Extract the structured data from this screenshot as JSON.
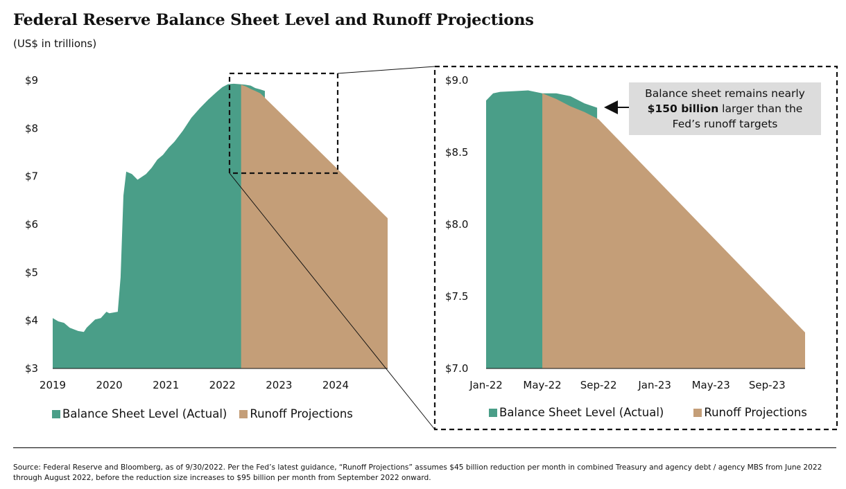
{
  "title": "Federal Reserve Balance Sheet Level and Runoff Projections",
  "subtitle": "(US$ in trillions)",
  "colors": {
    "actual": "#4a9e88",
    "projection": "#c49e78",
    "annotation_bg": "#dcdcdc"
  },
  "legend": {
    "actual": "Balance Sheet Level (Actual)",
    "projection": "Runoff Projections"
  },
  "annotation": {
    "line1": "Balance sheet remains nearly",
    "bold": "$150 billion",
    "line2_rest": " larger than the",
    "line3": "Fed’s runoff targets"
  },
  "source": "Source: Federal Reserve and Bloomberg, as of 9/30/2022. Per the Fed’s latest guidance, “Runoff Projections” assumes $45 billion reduction per month in combined Treasury and agency debt / agency MBS from June 2022 through August 2022, before the reduction size increases to $95 billion per month from September 2022 onward.",
  "chart_data": [
    {
      "type": "area",
      "title": "",
      "xlim": [
        2019.0,
        2024.92
      ],
      "ylim": [
        3,
        9
      ],
      "x_tick_labels": [
        "2019",
        "2020",
        "2021",
        "2022",
        "2023",
        "2024"
      ],
      "x_tick_values": [
        2019,
        2020,
        2021,
        2022,
        2023,
        2024
      ],
      "y_tick_labels": [
        "$3",
        "$4",
        "$5",
        "$6",
        "$7",
        "$8",
        "$9"
      ],
      "y_tick_values": [
        3,
        4,
        5,
        6,
        7,
        8,
        9
      ],
      "series": [
        {
          "name": "Balance Sheet Level (Actual)",
          "x": [
            2019.0,
            2019.1,
            2019.2,
            2019.3,
            2019.45,
            2019.55,
            2019.6,
            2019.75,
            2019.85,
            2019.95,
            2020.0,
            2020.15,
            2020.2,
            2020.25,
            2020.3,
            2020.4,
            2020.5,
            2020.65,
            2020.75,
            2020.85,
            2020.95,
            2021.05,
            2021.15,
            2021.3,
            2021.45,
            2021.6,
            2021.75,
            2021.9,
            2022.0,
            2022.1,
            2022.2,
            2022.3,
            2022.4,
            2022.5,
            2022.58,
            2022.67,
            2022.75
          ],
          "y": [
            4.05,
            3.98,
            3.95,
            3.85,
            3.78,
            3.76,
            3.85,
            4.02,
            4.05,
            4.18,
            4.15,
            4.18,
            4.9,
            6.6,
            7.1,
            7.05,
            6.93,
            7.05,
            7.18,
            7.35,
            7.45,
            7.6,
            7.72,
            7.95,
            8.22,
            8.42,
            8.6,
            8.76,
            8.86,
            8.92,
            8.93,
            8.92,
            8.91,
            8.89,
            8.84,
            8.81,
            8.78
          ],
          "y_range_min": 3
        },
        {
          "name": "Runoff Projections",
          "x": [
            2022.33,
            2022.42,
            2022.5,
            2022.58,
            2022.67,
            2024.92
          ],
          "y": [
            8.91,
            8.87,
            8.82,
            8.78,
            8.73,
            6.13
          ],
          "y_range_min": 3
        }
      ]
    },
    {
      "type": "area",
      "title": "",
      "xlim": [
        0,
        22.7
      ],
      "ylim": [
        7.0,
        9.0
      ],
      "x_tick_labels": [
        "Jan-22",
        "May-22",
        "Sep-22",
        "Jan-23",
        "May-23",
        "Sep-23"
      ],
      "x_tick_values": [
        0,
        4,
        8,
        12,
        16,
        20
      ],
      "y_tick_labels": [
        "$7.0",
        "$7.5",
        "$8.0",
        "$8.5",
        "$9.0"
      ],
      "y_tick_values": [
        7.0,
        7.5,
        8.0,
        8.5,
        9.0
      ],
      "series": [
        {
          "name": "Balance Sheet Level (Actual)",
          "x": [
            0,
            0.5,
            1,
            2,
            3,
            4,
            5,
            6,
            7,
            7.9
          ],
          "y": [
            8.86,
            8.91,
            8.92,
            8.925,
            8.93,
            8.91,
            8.91,
            8.89,
            8.84,
            8.81
          ],
          "y_range_min": 7.0
        },
        {
          "name": "Runoff Projections",
          "x": [
            4,
            5,
            6,
            7,
            8,
            22.7
          ],
          "y": [
            8.91,
            8.87,
            8.82,
            8.78,
            8.73,
            7.25
          ],
          "y_range_min": 7.0
        }
      ]
    }
  ]
}
